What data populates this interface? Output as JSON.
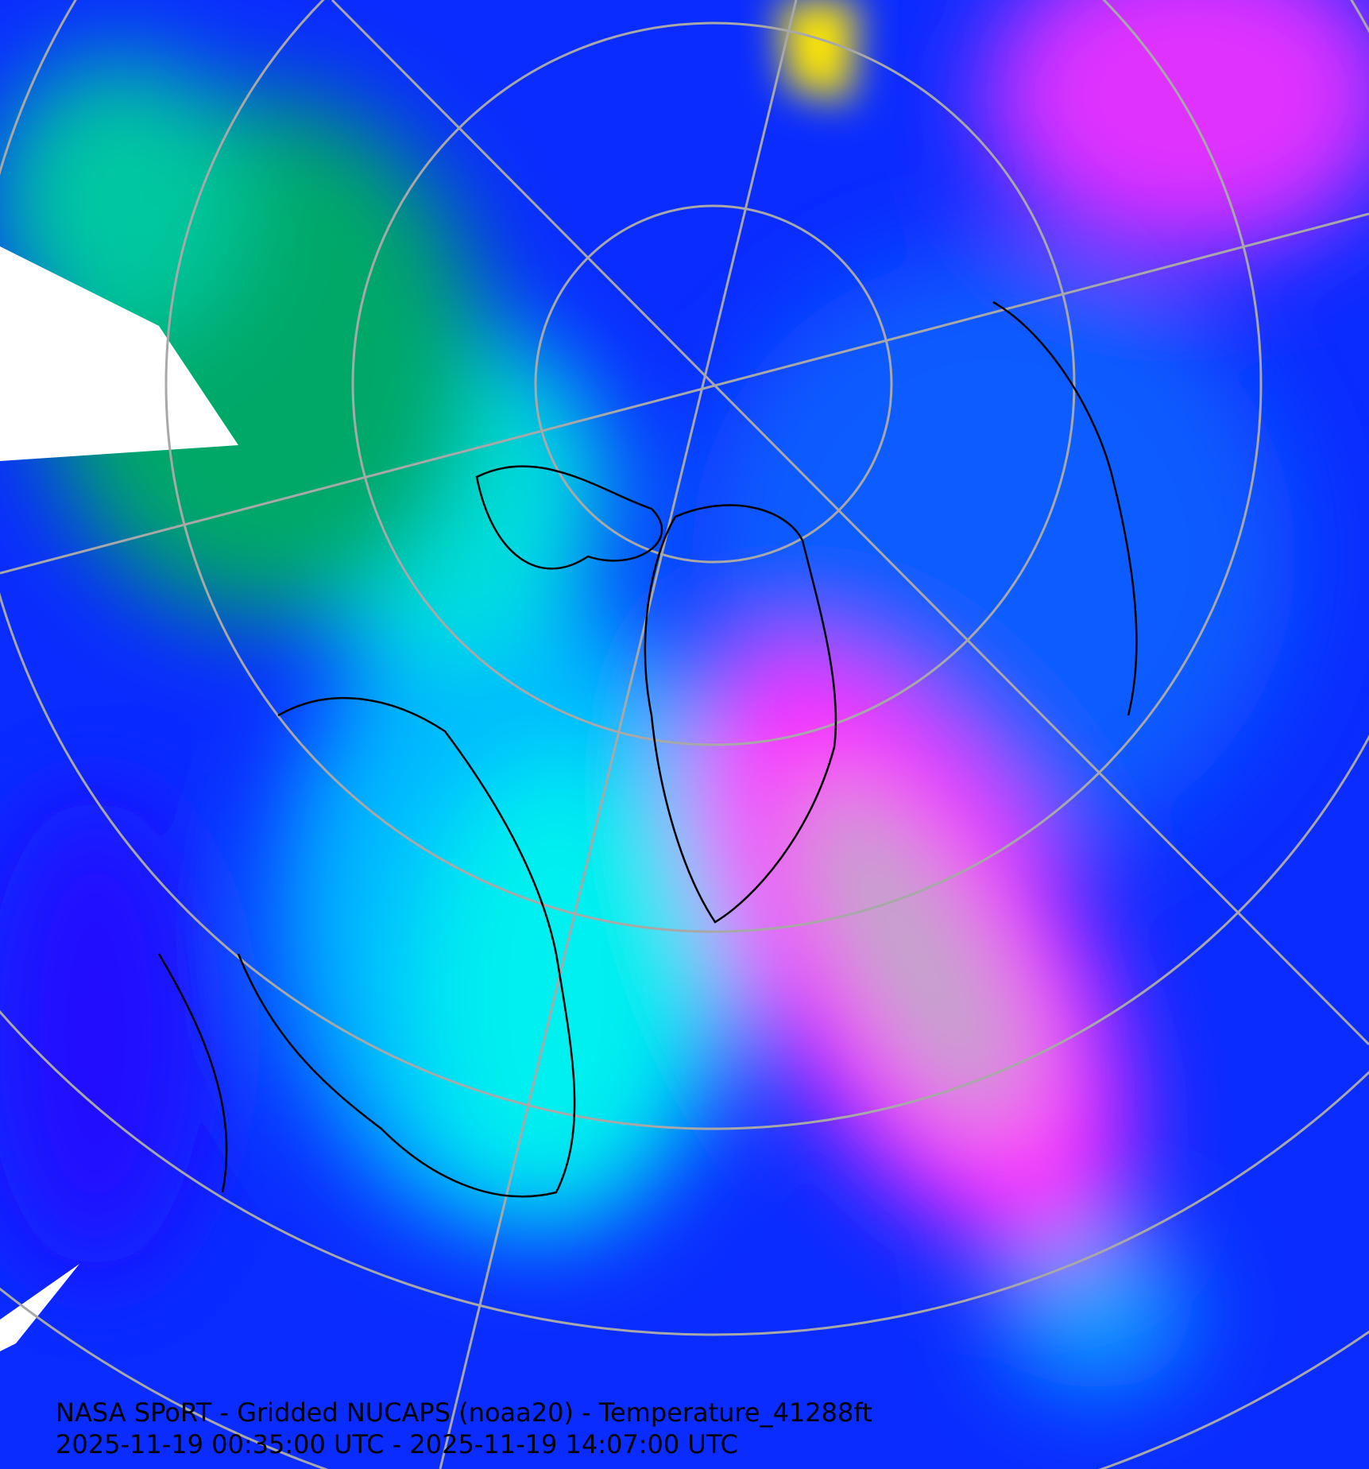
{
  "map": {
    "title": "NASA SPoRT - Gridded NUCAPS (noaa20) - Temperature_41288ft",
    "time_range": "2025-11-19 00:35:00 UTC - 2025-11-19 14:07:00 UTC",
    "projection": "north polar stereographic",
    "colors": {
      "background_blue": "#0a2cff",
      "green": "#00a060",
      "cyan": "#00e8f0",
      "light_blue": "#0aa8ff",
      "magenta": "#ff20ff",
      "grey": "#b0b0b0",
      "yellow": "#ffee00",
      "no_data": "#ffffff",
      "graticule": "#a8a8a8",
      "coastline": "#000000"
    }
  }
}
